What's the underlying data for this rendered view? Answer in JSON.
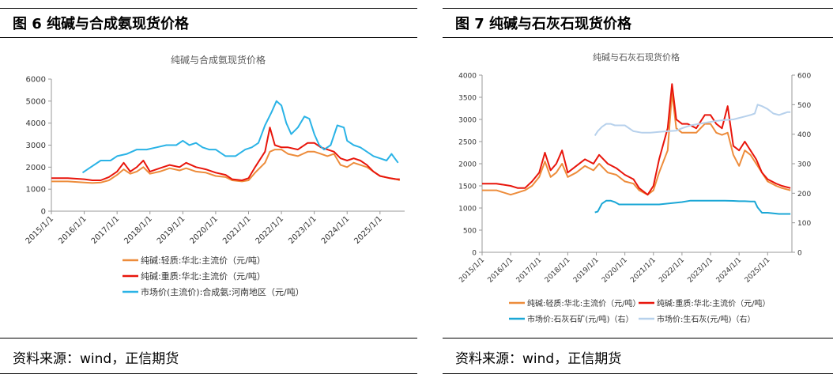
{
  "panels": [
    {
      "figure_title": "图 6  纯碱与合成氨现货价格",
      "source": "资料来源：wind，正信期货"
    },
    {
      "figure_title": "图 7  纯碱与石灰石现货价格",
      "source": "资料来源：wind，正信期货"
    }
  ],
  "colors": {
    "light_soda": "#ed8c3b",
    "heavy_soda": "#e8150b",
    "ammonia": "#2ab3e6",
    "limestone": "#1ba7d6",
    "quicklime": "#b7d1ec",
    "axis": "#999999"
  },
  "chart_data": [
    {
      "type": "line",
      "title": "纯碱与合成氨现货价格",
      "xlabel": "",
      "ylabel": "",
      "xlim": [
        2015.0,
        2025.75
      ],
      "ylim": [
        0,
        6000
      ],
      "yticks": [
        0,
        1000,
        2000,
        3000,
        4000,
        5000,
        6000
      ],
      "x_tick_labels": [
        "2015/1/1",
        "2016/1/1",
        "2017/1/1",
        "2018/1/1",
        "2019/1/1",
        "2020/1/1",
        "2021/1/1",
        "2022/1/1",
        "2023/1/1",
        "2024/1/1",
        "2025/1/1"
      ],
      "grid": false,
      "legend_position": "bottom",
      "series": [
        {
          "name": "纯碱:轻质:华北:主流价（元/吨）",
          "color_key": "light_soda",
          "x": [
            2015.0,
            2015.5,
            2016.0,
            2016.25,
            2016.5,
            2016.75,
            2017.0,
            2017.2,
            2017.4,
            2017.6,
            2017.8,
            2018.0,
            2018.3,
            2018.6,
            2018.9,
            2019.1,
            2019.4,
            2019.7,
            2020.0,
            2020.3,
            2020.5,
            2020.8,
            2021.0,
            2021.2,
            2021.5,
            2021.65,
            2021.8,
            2022.0,
            2022.2,
            2022.5,
            2022.8,
            2023.0,
            2023.2,
            2023.4,
            2023.6,
            2023.8,
            2024.0,
            2024.2,
            2024.4,
            2024.6,
            2024.8,
            2025.0,
            2025.3,
            2025.5,
            2025.6
          ],
          "y": [
            1350,
            1350,
            1300,
            1280,
            1300,
            1400,
            1650,
            1900,
            1700,
            1800,
            2000,
            1700,
            1800,
            1950,
            1850,
            1950,
            1800,
            1750,
            1600,
            1550,
            1400,
            1350,
            1400,
            1750,
            2200,
            2700,
            2800,
            2800,
            2600,
            2500,
            2700,
            2700,
            2600,
            2500,
            2600,
            2100,
            2000,
            2200,
            2100,
            2000,
            1800,
            1600,
            1500,
            1450,
            1400
          ]
        },
        {
          "name": "纯碱:重质:华北:主流价（元/吨）",
          "color_key": "heavy_soda",
          "x": [
            2015.0,
            2015.5,
            2016.0,
            2016.25,
            2016.5,
            2016.75,
            2017.0,
            2017.2,
            2017.4,
            2017.6,
            2017.8,
            2018.0,
            2018.3,
            2018.6,
            2018.9,
            2019.1,
            2019.4,
            2019.7,
            2020.0,
            2020.3,
            2020.5,
            2020.8,
            2021.0,
            2021.2,
            2021.5,
            2021.65,
            2021.8,
            2022.0,
            2022.2,
            2022.5,
            2022.8,
            2023.0,
            2023.2,
            2023.4,
            2023.6,
            2023.8,
            2024.0,
            2024.2,
            2024.4,
            2024.6,
            2024.8,
            2025.0,
            2025.3,
            2025.5,
            2025.6
          ],
          "y": [
            1500,
            1500,
            1450,
            1400,
            1400,
            1550,
            1800,
            2200,
            1800,
            2000,
            2300,
            1800,
            1950,
            2100,
            2000,
            2200,
            2000,
            1900,
            1750,
            1650,
            1450,
            1400,
            1500,
            2000,
            2700,
            3800,
            3000,
            2900,
            2900,
            2800,
            3100,
            3100,
            2900,
            2800,
            2700,
            2400,
            2300,
            2400,
            2300,
            2100,
            1800,
            1600,
            1500,
            1450,
            1450
          ]
        },
        {
          "name": "市场价(主流价):合成氨:河南地区（元/吨）",
          "color_key": "ammonia",
          "x": [
            2015.95,
            2016.2,
            2016.5,
            2016.8,
            2017.0,
            2017.3,
            2017.6,
            2017.9,
            2018.2,
            2018.5,
            2018.8,
            2019.0,
            2019.2,
            2019.4,
            2019.6,
            2019.8,
            2020.0,
            2020.3,
            2020.6,
            2020.9,
            2021.1,
            2021.3,
            2021.5,
            2021.7,
            2021.85,
            2022.0,
            2022.15,
            2022.3,
            2022.5,
            2022.7,
            2022.85,
            2023.0,
            2023.15,
            2023.3,
            2023.5,
            2023.7,
            2023.9,
            2024.0,
            2024.2,
            2024.4,
            2024.6,
            2024.8,
            2025.0,
            2025.2,
            2025.35,
            2025.45,
            2025.55
          ],
          "y": [
            1750,
            2000,
            2300,
            2300,
            2500,
            2600,
            2800,
            2800,
            2900,
            3000,
            3000,
            3200,
            3000,
            3100,
            2900,
            2800,
            2800,
            2500,
            2500,
            2800,
            2900,
            3100,
            3900,
            4500,
            5000,
            4800,
            4000,
            3500,
            3800,
            4300,
            4200,
            3500,
            3000,
            2800,
            3000,
            3900,
            3800,
            3200,
            3000,
            2900,
            2700,
            2500,
            2400,
            2300,
            2600,
            2400,
            2200
          ]
        }
      ]
    },
    {
      "type": "line",
      "title": "纯碱与石灰石现货价格",
      "xlabel": "",
      "ylabel": "",
      "xlim": [
        2015.0,
        2025.85
      ],
      "ylim": [
        0,
        4000
      ],
      "y2lim": [
        0,
        600
      ],
      "yticks": [
        0,
        500,
        1000,
        1500,
        2000,
        2500,
        3000,
        3500,
        4000
      ],
      "y2ticks": [
        0,
        100,
        200,
        300,
        400,
        500,
        600
      ],
      "x_tick_labels": [
        "2015/1/1",
        "2016/1/1",
        "2017/1/1",
        "2018/1/1",
        "2019/1/1",
        "2020/1/1",
        "2021/1/1",
        "2022/1/1",
        "2023/1/1",
        "2024/1/1",
        "2025/1/1"
      ],
      "grid": false,
      "legend_position": "bottom",
      "series": [
        {
          "name": "纯碱:轻质:华北:主流价（元/吨）",
          "axis": "left",
          "color_key": "light_soda",
          "x": [
            2015.0,
            2015.5,
            2016.0,
            2016.25,
            2016.5,
            2016.75,
            2017.0,
            2017.2,
            2017.4,
            2017.6,
            2017.8,
            2018.0,
            2018.3,
            2018.6,
            2018.9,
            2019.1,
            2019.4,
            2019.7,
            2020.0,
            2020.3,
            2020.5,
            2020.8,
            2021.0,
            2021.2,
            2021.5,
            2021.65,
            2021.8,
            2022.0,
            2022.2,
            2022.5,
            2022.8,
            2023.0,
            2023.2,
            2023.4,
            2023.6,
            2023.8,
            2024.0,
            2024.2,
            2024.4,
            2024.6,
            2024.8,
            2025.0,
            2025.3,
            2025.5,
            2025.8
          ],
          "y": [
            1400,
            1400,
            1300,
            1350,
            1400,
            1500,
            1700,
            2050,
            1700,
            1800,
            2000,
            1700,
            1800,
            1950,
            1850,
            2000,
            1800,
            1750,
            1600,
            1550,
            1400,
            1300,
            1400,
            1800,
            2300,
            3600,
            2800,
            2700,
            2700,
            2700,
            2900,
            2900,
            2700,
            2650,
            2700,
            2200,
            1950,
            2300,
            2200,
            2000,
            1800,
            1600,
            1500,
            1450,
            1400
          ]
        },
        {
          "name": "纯碱:重质:华北:主流价（元/吨）",
          "axis": "left",
          "color_key": "heavy_soda",
          "x": [
            2015.0,
            2015.5,
            2016.0,
            2016.25,
            2016.5,
            2016.75,
            2017.0,
            2017.2,
            2017.4,
            2017.6,
            2017.8,
            2018.0,
            2018.3,
            2018.6,
            2018.9,
            2019.1,
            2019.4,
            2019.7,
            2020.0,
            2020.3,
            2020.5,
            2020.8,
            2021.0,
            2021.2,
            2021.5,
            2021.65,
            2021.8,
            2022.0,
            2022.2,
            2022.5,
            2022.8,
            2023.0,
            2023.2,
            2023.4,
            2023.6,
            2023.8,
            2024.0,
            2024.2,
            2024.4,
            2024.6,
            2024.8,
            2025.0,
            2025.3,
            2025.5,
            2025.8
          ],
          "y": [
            1550,
            1550,
            1500,
            1450,
            1450,
            1600,
            1800,
            2250,
            1850,
            2000,
            2300,
            1800,
            1950,
            2100,
            2000,
            2200,
            2000,
            1900,
            1750,
            1650,
            1450,
            1300,
            1500,
            2100,
            2800,
            3800,
            3000,
            2900,
            2900,
            2800,
            3100,
            3100,
            2900,
            2800,
            3300,
            2400,
            2300,
            2500,
            2300,
            2100,
            1800,
            1650,
            1550,
            1500,
            1450
          ]
        },
        {
          "name": "市场价:石灰石矿(元/吨)（右）",
          "axis": "right",
          "color_key": "limestone",
          "x": [
            2018.95,
            2019.05,
            2019.2,
            2019.35,
            2019.5,
            2019.65,
            2019.8,
            2020.0,
            2020.3,
            2020.6,
            2020.9,
            2021.2,
            2021.5,
            2021.8,
            2022.0,
            2022.3,
            2022.6,
            2022.9,
            2023.2,
            2023.5,
            2023.8,
            2024.0,
            2024.2,
            2024.4,
            2024.55,
            2024.65,
            2024.8,
            2025.0,
            2025.2,
            2025.4,
            2025.55,
            2025.7,
            2025.8
          ],
          "y": [
            135,
            138,
            165,
            175,
            175,
            170,
            162,
            162,
            162,
            162,
            162,
            162,
            165,
            168,
            170,
            175,
            175,
            175,
            175,
            175,
            174,
            173,
            173,
            172,
            172,
            152,
            134,
            134,
            132,
            130,
            130,
            130,
            130
          ]
        },
        {
          "name": "市场价:生石灰(元/吨)（右）",
          "axis": "right",
          "color_key": "quicklime",
          "x": [
            2018.95,
            2019.05,
            2019.2,
            2019.35,
            2019.5,
            2019.65,
            2019.8,
            2020.0,
            2020.3,
            2020.6,
            2020.9,
            2021.2,
            2021.5,
            2021.8,
            2022.0,
            2022.3,
            2022.6,
            2022.9,
            2023.2,
            2023.5,
            2023.8,
            2024.0,
            2024.2,
            2024.4,
            2024.55,
            2024.65,
            2024.8,
            2025.0,
            2025.2,
            2025.4,
            2025.55,
            2025.7,
            2025.8
          ],
          "y": [
            395,
            410,
            425,
            435,
            435,
            430,
            430,
            430,
            410,
            405,
            405,
            408,
            410,
            412,
            420,
            430,
            435,
            440,
            445,
            448,
            450,
            455,
            460,
            465,
            470,
            500,
            495,
            485,
            470,
            465,
            470,
            475,
            475
          ]
        }
      ]
    }
  ]
}
